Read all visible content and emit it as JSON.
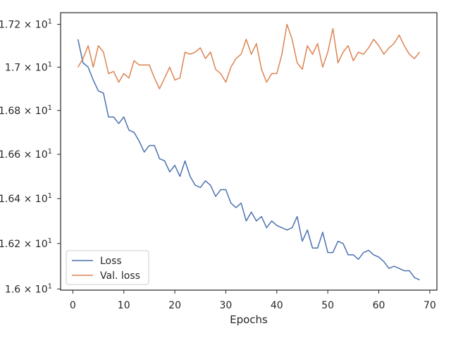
{
  "chart_data": {
    "type": "line",
    "xlabel": "Epochs",
    "ylabel": "",
    "xlim": [
      -2.4,
      71.4
    ],
    "ylim": [
      15.995,
      17.255
    ],
    "y_scale": "log",
    "grid": false,
    "legend_position": "lower-left",
    "x_ticks": [
      {
        "value": 0,
        "label": "0"
      },
      {
        "value": 10,
        "label": "10"
      },
      {
        "value": 20,
        "label": "20"
      },
      {
        "value": 30,
        "label": "30"
      },
      {
        "value": 40,
        "label": "40"
      },
      {
        "value": 50,
        "label": "50"
      },
      {
        "value": 60,
        "label": "60"
      },
      {
        "value": 70,
        "label": "70"
      }
    ],
    "y_ticks": [
      {
        "value": 16.0,
        "mantissa": "1.6",
        "base": "10",
        "exp": "1"
      },
      {
        "value": 16.2,
        "mantissa": "1.62",
        "base": "10",
        "exp": "1"
      },
      {
        "value": 16.4,
        "mantissa": "1.64",
        "base": "10",
        "exp": "1"
      },
      {
        "value": 16.6,
        "mantissa": "1.66",
        "base": "10",
        "exp": "1"
      },
      {
        "value": 16.8,
        "mantissa": "1.68",
        "base": "10",
        "exp": "1"
      },
      {
        "value": 17.0,
        "mantissa": "1.7",
        "base": "10",
        "exp": "1"
      },
      {
        "value": 17.2,
        "mantissa": "1.72",
        "base": "10",
        "exp": "1"
      }
    ],
    "series": [
      {
        "name": "Loss",
        "color": "#4c72b0",
        "x": [
          1,
          2,
          3,
          4,
          5,
          6,
          7,
          8,
          9,
          10,
          11,
          12,
          13,
          14,
          15,
          16,
          17,
          18,
          19,
          20,
          21,
          22,
          23,
          24,
          25,
          26,
          27,
          28,
          29,
          30,
          31,
          32,
          33,
          34,
          35,
          36,
          37,
          38,
          39,
          40,
          41,
          42,
          43,
          44,
          45,
          46,
          47,
          48,
          49,
          50,
          51,
          52,
          53,
          54,
          55,
          56,
          57,
          58,
          59,
          60,
          61,
          62,
          63,
          64,
          65,
          66,
          67,
          68
        ],
        "y": [
          17.13,
          17.02,
          17.0,
          16.94,
          16.89,
          16.88,
          16.77,
          16.77,
          16.74,
          16.77,
          16.71,
          16.7,
          16.66,
          16.61,
          16.64,
          16.64,
          16.58,
          16.57,
          16.52,
          16.55,
          16.5,
          16.57,
          16.5,
          16.46,
          16.45,
          16.48,
          16.46,
          16.41,
          16.44,
          16.44,
          16.38,
          16.36,
          16.38,
          16.3,
          16.34,
          16.3,
          16.32,
          16.27,
          16.3,
          16.28,
          16.27,
          16.26,
          16.27,
          16.32,
          16.21,
          16.26,
          16.18,
          16.18,
          16.25,
          16.16,
          16.16,
          16.21,
          16.2,
          16.15,
          16.15,
          16.13,
          16.16,
          16.17,
          16.15,
          16.14,
          16.12,
          16.09,
          16.1,
          16.09,
          16.08,
          16.08,
          16.05,
          16.04
        ]
      },
      {
        "name": "Val. loss",
        "color": "#dd8452",
        "x": [
          1,
          2,
          3,
          4,
          5,
          6,
          7,
          8,
          9,
          10,
          11,
          12,
          13,
          14,
          15,
          16,
          17,
          18,
          19,
          20,
          21,
          22,
          23,
          24,
          25,
          26,
          27,
          28,
          29,
          30,
          31,
          32,
          33,
          34,
          35,
          36,
          37,
          38,
          39,
          40,
          41,
          42,
          43,
          44,
          45,
          46,
          47,
          48,
          49,
          50,
          51,
          52,
          53,
          54,
          55,
          56,
          57,
          58,
          59,
          60,
          61,
          62,
          63,
          64,
          65,
          66,
          67,
          68
        ],
        "y": [
          17.0,
          17.04,
          17.1,
          17.0,
          17.1,
          17.07,
          16.97,
          16.98,
          16.93,
          16.97,
          16.95,
          17.03,
          17.01,
          17.01,
          17.01,
          16.95,
          16.9,
          16.95,
          17.0,
          16.94,
          16.95,
          17.07,
          17.06,
          17.07,
          17.09,
          17.04,
          17.07,
          16.99,
          16.97,
          16.93,
          17.0,
          17.04,
          17.06,
          17.13,
          17.06,
          17.11,
          16.99,
          16.93,
          16.97,
          16.97,
          17.06,
          17.2,
          17.13,
          17.02,
          16.99,
          17.1,
          17.06,
          17.11,
          17.0,
          17.07,
          17.18,
          17.02,
          17.07,
          17.1,
          17.03,
          17.07,
          17.06,
          17.09,
          17.13,
          17.1,
          17.06,
          17.09,
          17.11,
          17.15,
          17.1,
          17.06,
          17.04,
          17.07
        ]
      }
    ]
  }
}
